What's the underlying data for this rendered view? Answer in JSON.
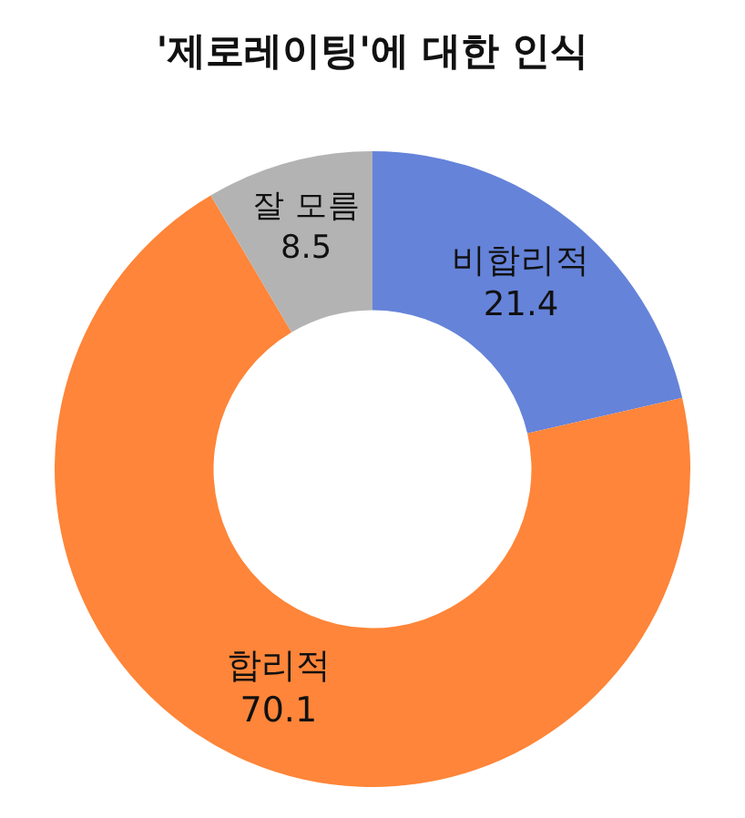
{
  "chart_data": {
    "type": "donut",
    "title": "'제로레이팅'에 대한 인식",
    "categories": [
      "비합리적",
      "합리적",
      "잘 모름"
    ],
    "values": [
      21.4,
      70.1,
      8.5
    ],
    "colors": [
      "#6583d9",
      "#fe8539",
      "#b3b3b3"
    ],
    "data_labels": true,
    "legend": false
  }
}
